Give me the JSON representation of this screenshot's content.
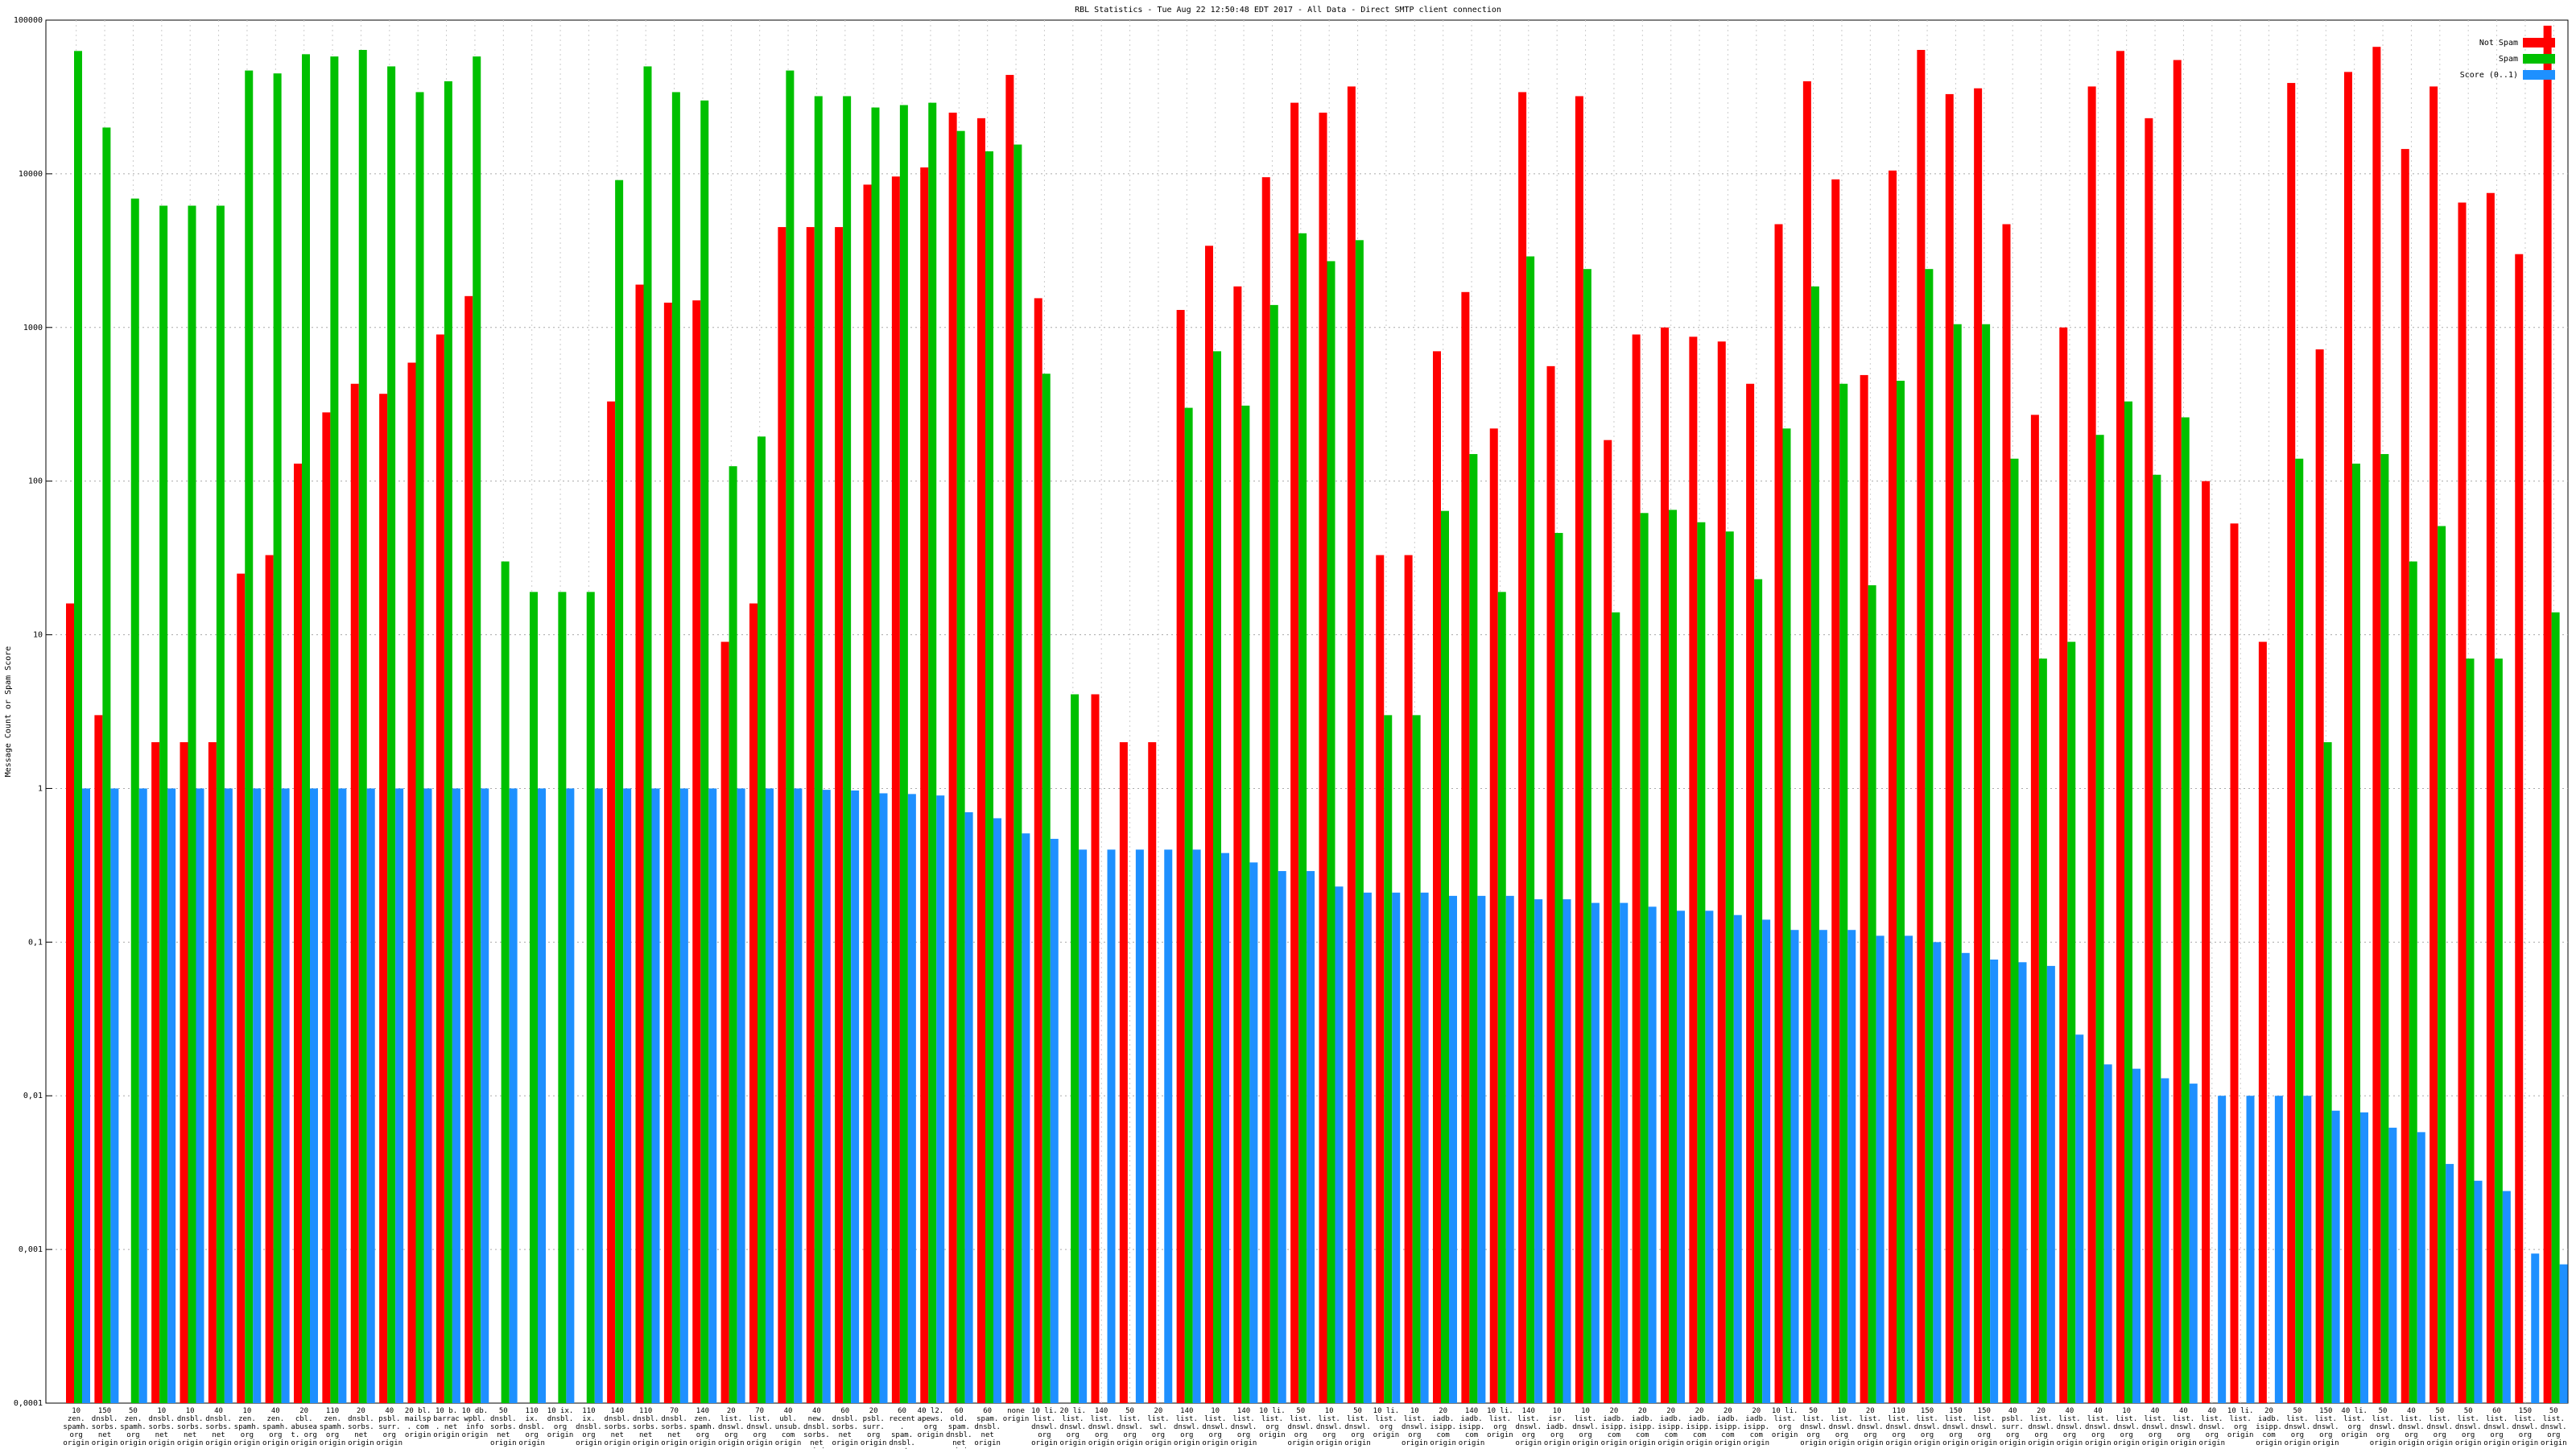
{
  "chart_data": {
    "type": "bar",
    "title": "RBL Statistics - Tue Aug 22 12:50:48 EDT 2017 - All Data - Direct SMTP client connection",
    "y_label": "Message Count or Spam Score",
    "log_scale": true,
    "grid": true,
    "legend": "top-right",
    "ylim": [
      0.0001,
      100000
    ],
    "yticks": [
      {
        "value": 0.0001,
        "label": "0,0001"
      },
      {
        "value": 0.001,
        "label": "0,001"
      },
      {
        "value": 0.01,
        "label": "0,01"
      },
      {
        "value": 0.1,
        "label": "0,1"
      },
      1,
      10,
      100,
      1000,
      10000,
      100000
    ],
    "categories": [
      "10 zen. spamh. org origin",
      "150 dnsbl. sorbs. net origin",
      "50 zen. spamh. org origin",
      "10 dnsbl. sorbs. net origin",
      "10 dnsbl. sorbs. net origin",
      "40 dnsbl. sorbs. net origin",
      "10 zen. spamh. org origin",
      "40 zen. spamh. org origin",
      "20 cbl. abuseat. org origin",
      "110 zen. spamh. org origin",
      "20 dnsbl. sorbs. net origin",
      "40 psbl. surr. org origin",
      "20 bl. mailsp. com origin",
      "10 b. barrac. net origin",
      "10 db. wpbl. info origin",
      "50 dnsbl. sorbs. net origin",
      "110 ix. dnsbl. org origin",
      "10 ix. dnsbl. org origin",
      "110 ix. dnsbl. org origin",
      "140 dnsbl. sorbs. net origin",
      "110 dnsbl. sorbs. net origin",
      "70 dnsbl. sorbs. net origin",
      "140 zen. spamh. org origin",
      "20 list. dnswl. org origin",
      "70 list. dnswl. org origin",
      "40 ubl. unsub. com origin",
      "40 new. dnsbl. sorbs. net origin",
      "60 dnsbl. sorbs. net origin",
      "20 psbl. surr. org origin",
      "60 recent. spam. dnsbl. net origin",
      "40 l2. apews. org origin",
      "60 old. spam. dnsbl. net origin",
      "60 spam. dnsbl. net origin",
      "none origin",
      "10 li. list. dnswl. org origin",
      "20 li. list. dnswl. org origin",
      "140 list. dnswl. org origin",
      "50 list. dnswl. org origin",
      "20 list. swl. org origin",
      "140 list. dnswl. org origin",
      "10 list. dnswl. org origin",
      "140 list. dnswl. org origin",
      "10 li. list. org origin",
      "50 list. dnswl. org origin",
      "10 list. dnswl. org origin",
      "50 list. dnswl. org origin",
      "10 li. list. org origin",
      "10 list. dnswl. org origin",
      "20 iadb. isipp. com origin",
      "140 iadb. isipp. com origin",
      "10 li. list. org origin",
      "140 list. dnswl. org origin",
      "10 isr. iadb. org origin",
      "10 list. dnswl. org origin",
      "20 iadb. isipp. com origin",
      "20 iadb. isipp. com origin",
      "20 iadb. isipp. com origin",
      "20 iadb. isipp. com origin",
      "20 iadb. isipp. com origin",
      "20 iadb. isipp. com origin",
      "10 li. list. org origin",
      "50 list. dnswl. org origin",
      "10 list. dnswl. org origin",
      "20 list. dnswl. org origin",
      "110 list. dnswl. org origin",
      "150 list. dnswl. org origin",
      "150 list. dnswl. org origin",
      "150 list. dnswl. org origin",
      "40 psbl. surr. org origin",
      "20 list. dnswl. org origin",
      "40 list. dnswl. org origin",
      "40 list. dnswl. org origin",
      "10 list. dnswl. org origin",
      "40 list. dnswl. org origin",
      "40 list. dnswl. org origin",
      "40 list. dnswl. org origin",
      "10 li. list. org origin",
      "20 iadb. isipp. com origin",
      "50 list. dnswl. org origin",
      "150 list. dnswl. org origin",
      "40 li. list. org origin",
      "50 list. dnswl. org origin",
      "40 list. dnswl. org origin",
      "50 list. dnswl. org origin",
      "50 list. dnswl. org origin",
      "60 list. dnswl. org origin",
      "150 list. dnswl. org origin",
      "50 list. dnswl. org origin"
    ],
    "series": [
      {
        "name": "Not Spam",
        "color": "#ff0000",
        "values": [
          16,
          3,
          null,
          2,
          2,
          2,
          25,
          33,
          130,
          280,
          430,
          370,
          590,
          900,
          1600,
          null,
          null,
          null,
          null,
          330,
          1900,
          1450,
          1500,
          9,
          16,
          4500,
          4500,
          4500,
          8500,
          9600,
          11000,
          25000,
          23000,
          44000,
          1550,
          null,
          4.1,
          2,
          2,
          1300,
          3400,
          1850,
          9500,
          29000,
          25000,
          37000,
          33,
          33,
          700,
          1700,
          220,
          34000,
          560,
          32000,
          185,
          900,
          1000,
          870,
          810,
          430,
          4700,
          40000,
          9200,
          490,
          10500,
          64000,
          33000,
          36000,
          4700,
          270,
          1000,
          37000,
          63000,
          23000,
          55000,
          100,
          53,
          9,
          39000,
          720,
          46000,
          67000,
          14500,
          37000,
          6500,
          7500,
          3000,
          92000
        ]
      },
      {
        "name": "Spam",
        "color": "#00c000",
        "values": [
          63000,
          20000,
          6900,
          6200,
          6200,
          6200,
          47000,
          45000,
          60000,
          58000,
          64000,
          50000,
          34000,
          40000,
          58000,
          30,
          19,
          19,
          19,
          9100,
          50000,
          34000,
          30000,
          125,
          195,
          47000,
          32000,
          32000,
          27000,
          28000,
          29000,
          19000,
          14000,
          15500,
          500,
          4.1,
          null,
          null,
          null,
          300,
          700,
          310,
          1400,
          4100,
          2700,
          3700,
          3,
          3,
          64,
          150,
          19,
          2900,
          46,
          2400,
          14,
          62,
          65,
          54,
          47,
          23,
          220,
          1850,
          430,
          21,
          450,
          2400,
          1050,
          1050,
          140,
          7,
          9,
          200,
          330,
          110,
          260,
          null,
          null,
          null,
          140,
          2,
          130,
          150,
          30,
          51,
          7,
          7,
          null,
          14
        ]
      },
      {
        "name": "Score (0..1)",
        "color": "#1e90ff",
        "values": [
          1,
          1,
          1,
          1,
          1,
          1,
          1,
          1,
          1,
          1,
          1,
          1,
          1,
          1,
          1,
          1,
          1,
          1,
          1,
          1,
          1,
          1,
          1,
          1,
          1,
          1,
          0.98,
          0.97,
          0.93,
          0.92,
          0.9,
          0.7,
          0.64,
          0.51,
          0.47,
          0.4,
          0.4,
          0.4,
          0.4,
          0.4,
          0.38,
          0.33,
          0.29,
          0.29,
          0.23,
          0.21,
          0.21,
          0.21,
          0.2,
          0.2,
          0.2,
          0.19,
          0.19,
          0.18,
          0.18,
          0.17,
          0.16,
          0.16,
          0.15,
          0.14,
          0.12,
          0.12,
          0.12,
          0.11,
          0.11,
          0.1,
          0.085,
          0.077,
          0.074,
          0.07,
          0.025,
          0.016,
          0.015,
          0.013,
          0.012,
          0.01,
          0.01,
          0.01,
          0.01,
          0.008,
          0.0078,
          0.0062,
          0.0058,
          0.0036,
          0.0028,
          0.0024,
          0.00094,
          0.0008
        ]
      }
    ]
  }
}
